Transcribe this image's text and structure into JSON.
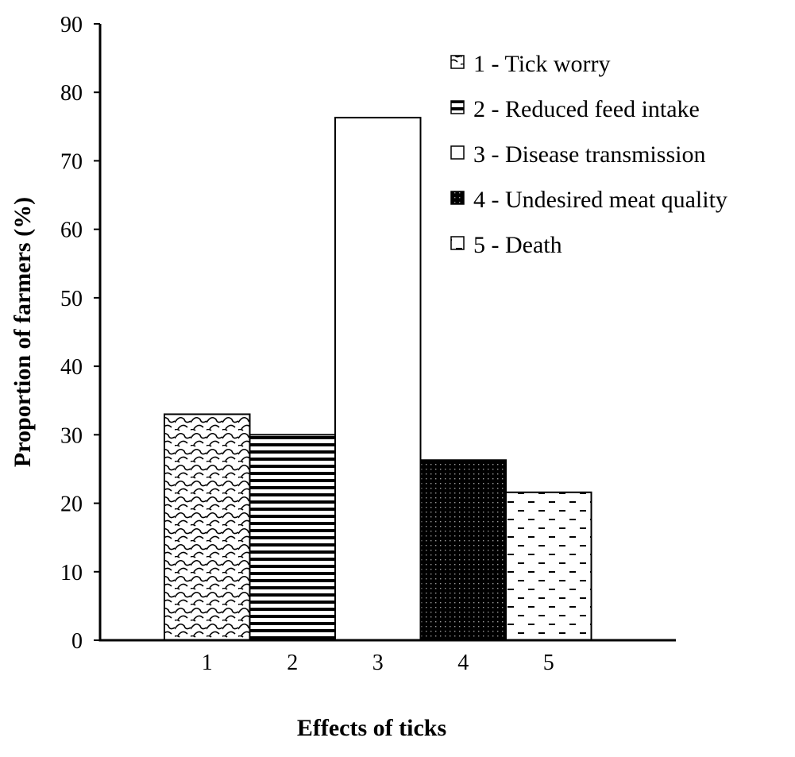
{
  "chart_data": {
    "type": "bar",
    "categories": [
      "1",
      "2",
      "3",
      "4",
      "5"
    ],
    "values": [
      33,
      30,
      76.3,
      26.3,
      21.6
    ],
    "xlabel": "Effects of ticks",
    "ylabel": "Proportion of farmers (%)",
    "ylim": [
      0,
      90
    ],
    "yticks": [
      0,
      10,
      20,
      30,
      40,
      50,
      60,
      70,
      80,
      90
    ],
    "grid": false,
    "legend_position": "top-right",
    "legend": [
      {
        "label": "1 - Tick worry",
        "pattern": "scale"
      },
      {
        "label": "2 - Reduced feed intake",
        "pattern": "horizontal-lines"
      },
      {
        "label": "3 - Disease transmission",
        "pattern": "blank"
      },
      {
        "label": "4 - Undesired meat quality",
        "pattern": "dotted-grid-dark"
      },
      {
        "label": "5 - Death",
        "pattern": "dashes"
      }
    ],
    "colors": {
      "axis": "#000000",
      "background": "#ffffff"
    }
  }
}
